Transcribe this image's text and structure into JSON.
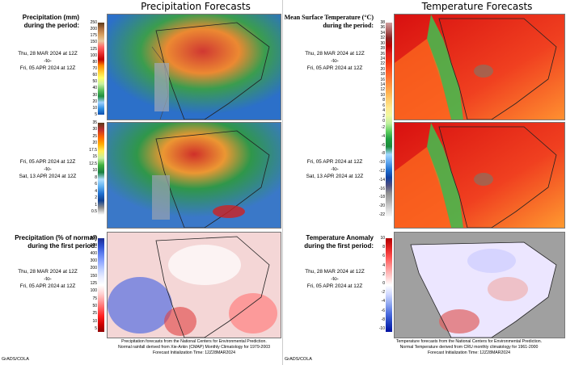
{
  "precip": {
    "title": "Precipitation Forecasts",
    "label1_line1": "Precipitation (mm)",
    "label1_line2": "during the period:",
    "p1_start": "Thu, 28 MAR 2024 at 12Z",
    "p1_to": "-to-",
    "p1_end": "Fri, 05 APR 2024 at 12Z",
    "p2_start": "Fri, 05 APR 2024 at 12Z",
    "p2_to": "-to-",
    "p2_end": "Sat, 13 APR 2024 at 12Z",
    "label3_line1": "Precipitation (% of normal)",
    "label3_line2": "during the first period:",
    "p3_start": "Thu, 28 MAR 2024 at 12Z",
    "p3_to": "-to-",
    "p3_end": "Fri, 05 APR 2024 at 12Z",
    "scale1": [
      "250",
      "200",
      "175",
      "150",
      "125",
      "100",
      "80",
      "70",
      "60",
      "50",
      "40",
      "30",
      "20",
      "10",
      "5"
    ],
    "scale2": [
      "35",
      "30",
      "25",
      "20",
      "17.5",
      "15",
      "12.5",
      "10",
      "8",
      "6",
      "4",
      "2",
      "1",
      "0.5"
    ],
    "scale3": [
      "800",
      "600",
      "400",
      "300",
      "200",
      "150",
      "125",
      "100",
      "75",
      "50",
      "25",
      "10",
      "5"
    ],
    "footer1": "Precipitation forecasts from the National Centers for Environmental Prediction.",
    "footer2": "Normal rainfall derived from Xie-Arkin (CMAP) Monthly Climatology for 1979-2003",
    "footer3": "Forecast Initialization Time: 12Z28MAR2024"
  },
  "temp": {
    "title": "Temperature Forecasts",
    "label1_line1": "Mean Surface Temperature (°C)",
    "label1_line2": "during the period:",
    "p1_start": "Thu, 28 MAR 2024 at 12Z",
    "p1_to": "-to-",
    "p1_end": "Fri, 05 APR 2024 at 12Z",
    "p2_start": "Fri, 05 APR 2024 at 12Z",
    "p2_to": "-to-",
    "p2_end": "Sat, 13 APR 2024 at 12Z",
    "label3_line1": "Temperature Anomaly",
    "label3_line2": "during the first period:",
    "p3_start": "Thu, 28 MAR 2024 at 12Z",
    "p3_to": "-to-",
    "p3_end": "Fri, 05 APR 2024 at 12Z",
    "scale1": [
      "38",
      "36",
      "34",
      "32",
      "30",
      "28",
      "26",
      "24",
      "22",
      "20",
      "18",
      "16",
      "14",
      "12",
      "10",
      "8",
      "6",
      "4",
      "2",
      "0"
    ],
    "scale2": [
      "-2",
      "-4",
      "-6",
      "-8",
      "-10",
      "-12",
      "-14",
      "-16",
      "-18",
      "-20",
      "-22"
    ],
    "scale3": [
      "10",
      "8",
      "6",
      "4",
      "2",
      "0",
      "-2",
      "-4",
      "-6",
      "-8",
      "-10"
    ],
    "footer1": "Temperature forecasts from the National Centers for Environmental Prediction.",
    "footer2": "Normal Temperature derived from CRU monthly climatology for 1961-2000",
    "footer3": "Forecast Initialization Time: 12Z28MAR2024"
  },
  "credit_left": "GrADS/COLA",
  "credit_right": "GrADS/COLA"
}
